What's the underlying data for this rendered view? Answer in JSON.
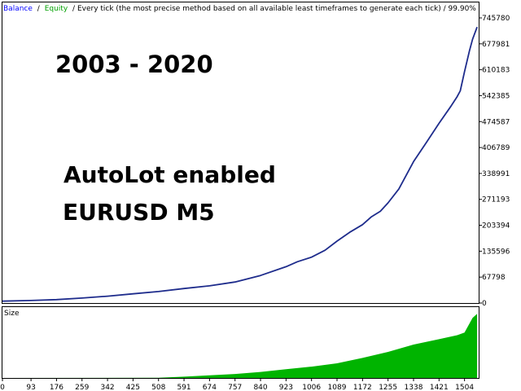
{
  "header": {
    "balance_label": "Balance",
    "sep1": "/",
    "equity_label": "Equity",
    "description": "/ Every tick (the most precise method based on all available least timeframes to generate each tick) / 99.90%"
  },
  "annotations": {
    "period": "2003 - 2020",
    "autolot": "AutoLot enabled",
    "instrument": "EURUSD M5"
  },
  "size_panel": {
    "label": "Size"
  },
  "colors": {
    "balance": "#0000FF",
    "equity": "#00A000",
    "line": "#1E2C8C",
    "size_fill": "#00B400",
    "grid": "#C0C0C0",
    "frame": "#000000"
  },
  "chart_data": [
    {
      "type": "line",
      "series": [
        {
          "name": "Balance",
          "x": [
            0,
            93,
            176,
            259,
            342,
            425,
            508,
            591,
            674,
            757,
            840,
            923,
            960,
            1006,
            1050,
            1089,
            1130,
            1172,
            1200,
            1230,
            1255,
            1290,
            1338,
            1380,
            1421,
            1460,
            1480,
            1490,
            1504,
            1520,
            1530,
            1545
          ],
          "values": [
            5000,
            6500,
            9000,
            13000,
            18000,
            24000,
            30000,
            38000,
            45000,
            55000,
            72000,
            95000,
            108000,
            120000,
            138000,
            162000,
            185000,
            205000,
            225000,
            240000,
            262000,
            298000,
            370000,
            420000,
            470000,
            515000,
            540000,
            555000,
            605000,
            660000,
            690000,
            722000
          ]
        }
      ],
      "y_ticks": [
        "745780",
        "677981",
        "610183",
        "542385",
        "474587",
        "406789",
        "338991",
        "271193",
        "203394",
        "135596",
        "67798",
        "0"
      ],
      "ylim": [
        0,
        745780
      ],
      "xlim": [
        0,
        1550
      ],
      "grid": false
    },
    {
      "type": "area",
      "title": "Size",
      "series": [
        {
          "name": "Size",
          "x": [
            0,
            508,
            591,
            674,
            757,
            840,
            923,
            1006,
            1089,
            1172,
            1255,
            1338,
            1421,
            1480,
            1504,
            1530,
            1545
          ],
          "values": [
            0,
            0.2,
            2,
            4,
            6,
            9,
            13,
            17,
            22,
            30,
            39,
            50,
            58,
            64,
            68,
            90,
            96
          ]
        }
      ],
      "x_ticks": [
        "0",
        "93",
        "176",
        "259",
        "342",
        "425",
        "508",
        "591",
        "674",
        "757",
        "840",
        "923",
        "1006",
        "1089",
        "1172",
        "1255",
        "1338",
        "1421",
        "1504"
      ],
      "ylim": [
        0,
        100
      ],
      "grid": false
    }
  ]
}
